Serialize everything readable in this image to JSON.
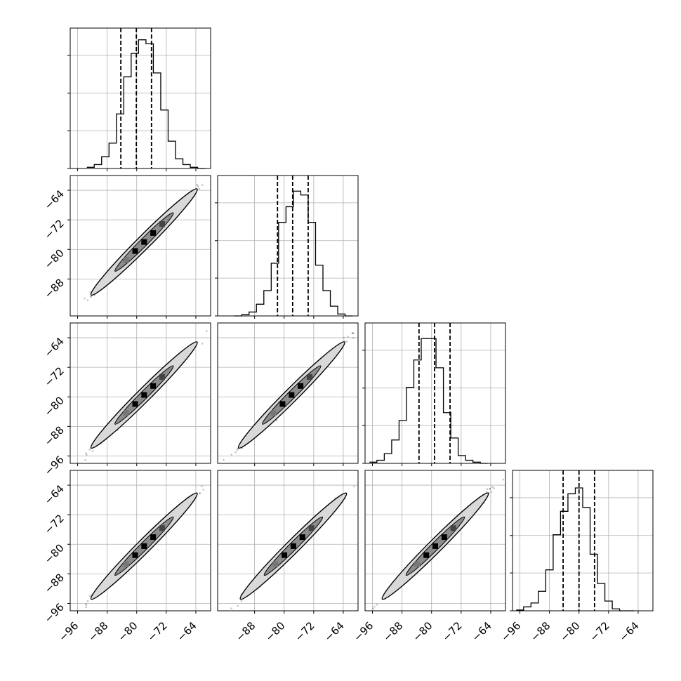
{
  "chart_data": {
    "type": "corner",
    "n_params": 4,
    "parameters": [
      "",
      "",
      "",
      ""
    ],
    "grid": true,
    "histograms": [
      {
        "bins": [
          -93.5,
          -91.5,
          -89.5,
          -87.5,
          -85.5,
          -83.5,
          -81.5,
          -79.5,
          -77.5,
          -75.5,
          -73.5,
          -71.5,
          -69.5,
          -67.5,
          -65.5,
          -63.5
        ],
        "counts": [
          0.3,
          1.0,
          3.0,
          6.5,
          14.0,
          23.5,
          29.5,
          33.0,
          32.0,
          24.5,
          15.0,
          7.0,
          2.5,
          1.0,
          0.3,
          0.0
        ],
        "quantiles": [
          -84.3,
          -80.1,
          -76.0
        ]
      },
      {
        "bins": [
          -93.5,
          -91.5,
          -89.5,
          -87.5,
          -85.5,
          -83.5,
          -81.5,
          -79.5,
          -77.5,
          -75.5,
          -73.5,
          -71.5,
          -69.5,
          -67.5,
          -65.5,
          -63.5
        ],
        "counts": [
          0.0,
          0.3,
          1.0,
          3.0,
          6.5,
          13.5,
          24.0,
          28.0,
          32.0,
          31.0,
          24.0,
          13.0,
          6.5,
          2.5,
          0.5,
          0.0
        ],
        "quantiles": [
          -81.8,
          -77.7,
          -73.5
        ]
      },
      {
        "bins": [
          -96.8,
          -94.8,
          -92.8,
          -90.8,
          -88.8,
          -86.8,
          -84.8,
          -82.8,
          -80.8,
          -78.8,
          -76.8,
          -74.8,
          -72.8,
          -70.8,
          -68.8,
          -66.8
        ],
        "counts": [
          0.3,
          0.8,
          2.5,
          6.0,
          11.0,
          19.5,
          26.5,
          32.0,
          32.0,
          24.5,
          13.0,
          6.5,
          2.0,
          0.8,
          0.3,
          0.0
        ],
        "quantiles": [
          -83.4,
          -79.2,
          -75.0
        ]
      },
      {
        "bins": [
          -97.0,
          -95.0,
          -93.0,
          -91.0,
          -89.0,
          -87.0,
          -85.0,
          -83.0,
          -81.0,
          -79.0,
          -77.0,
          -75.0,
          -73.0,
          -71.0,
          -69.0,
          -67.0
        ],
        "counts": [
          0.2,
          1.0,
          2.0,
          5.0,
          10.5,
          19.5,
          25.5,
          30.0,
          31.5,
          26.5,
          14.5,
          7.0,
          2.5,
          0.5,
          0.0,
          0.0
        ],
        "quantiles": [
          -84.3,
          -80.0,
          -75.8
        ]
      }
    ],
    "axes": {
      "x_ranges": [
        [
          -98,
          -60
        ],
        [
          -98,
          -60
        ],
        [
          -98,
          -60
        ],
        [
          -98,
          -60
        ]
      ],
      "y_ranges": [
        [
          -98,
          -60
        ],
        [
          -98,
          -60
        ],
        [
          -98,
          -60
        ]
      ],
      "x_ticks": [
        [
          "-96",
          "-88",
          "-80",
          "-72",
          "-64"
        ],
        [
          "-88",
          "-80",
          "-72",
          "-64"
        ],
        [
          "-96",
          "-88",
          "-80",
          "-72",
          "-64"
        ],
        [
          "-96",
          "-88",
          "-80",
          "-72",
          "-64"
        ]
      ],
      "y_ticks": [
        [
          "-64",
          "-72",
          "-80",
          "-88"
        ],
        [
          "-64",
          "-72",
          "-80",
          "-88",
          "-96"
        ],
        [
          "-64",
          "-72",
          "-80",
          "-88",
          "-96"
        ]
      ]
    },
    "scatter_panels": [
      {
        "row": 1,
        "col": 0,
        "center": [
          -78,
          -78
        ],
        "spread": 5.2,
        "rho": 0.995
      },
      {
        "row": 2,
        "col": 0,
        "center": [
          -78,
          -79.5
        ],
        "spread": 5.2,
        "rho": 0.995
      },
      {
        "row": 2,
        "col": 1,
        "center": [
          -78,
          -79.5
        ],
        "spread": 5.2,
        "rho": 0.995
      },
      {
        "row": 3,
        "col": 0,
        "center": [
          -78,
          -80.5
        ],
        "spread": 5.2,
        "rho": 0.995
      },
      {
        "row": 3,
        "col": 1,
        "center": [
          -77.5,
          -80.5
        ],
        "spread": 5.2,
        "rho": 0.995
      },
      {
        "row": 3,
        "col": 2,
        "center": [
          -79,
          -80.5
        ],
        "spread": 5.2,
        "rho": 0.995
      }
    ]
  }
}
